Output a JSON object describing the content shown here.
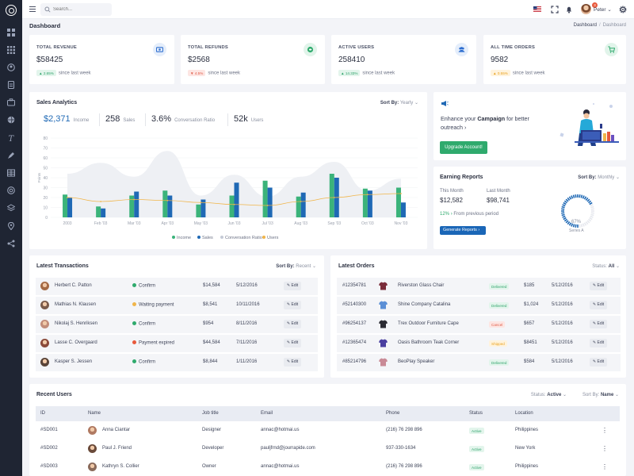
{
  "header": {
    "search_placeholder": "Search...",
    "notification_count": "3",
    "user_name": "Peter"
  },
  "page": {
    "title": "Dashboard",
    "breadcrumb": [
      "Dashboard",
      "Dashboard"
    ]
  },
  "stats": [
    {
      "title": "TOTAL REVENUE",
      "value": "$58425",
      "change": "2.65%",
      "trend": "up",
      "since": "since last week",
      "icon": "money-icon",
      "color": "#2f6fd0",
      "bg": "#e5eefb"
    },
    {
      "title": "TOTAL REFUNDS",
      "value": "$2568",
      "change": "4.5%",
      "trend": "down",
      "since": "since last week",
      "icon": "refund-icon",
      "color": "#2faa6d",
      "bg": "#e1f4ea"
    },
    {
      "title": "ACTIVE USERS",
      "value": "258410",
      "change": "14.33%",
      "trend": "up",
      "since": "since last week",
      "icon": "users-icon",
      "color": "#2f6fd0",
      "bg": "#e5eefb"
    },
    {
      "title": "ALL TIME ORDERS",
      "value": "9582",
      "change": "0.55%",
      "trend": "mid",
      "since": "since last week",
      "icon": "cart-icon",
      "color": "#2faa6d",
      "bg": "#e1f4ea"
    }
  ],
  "sales": {
    "title": "Sales Analytics",
    "sort_label": "Sort By:",
    "sort_value": "Yearly",
    "kpis": [
      {
        "value": "$2,371",
        "label": "Income"
      },
      {
        "value": "258",
        "label": "Sales"
      },
      {
        "value": "3.6%",
        "label": "Conversation Ratio"
      },
      {
        "value": "52k",
        "label": "Users"
      }
    ]
  },
  "chart_data": {
    "type": "bar",
    "categories": [
      "2003",
      "Feb '03",
      "Mar '03",
      "Apr '03",
      "May '03",
      "Jun '03",
      "Jul '03",
      "Aug '03",
      "Sep '03",
      "Oct '03",
      "Nov '03"
    ],
    "ylabel": "Points",
    "ylim": [
      0,
      80
    ],
    "yticks": [
      0,
      10,
      20,
      30,
      40,
      50,
      60,
      70,
      80
    ],
    "series": [
      {
        "name": "Income",
        "type": "bar",
        "color": "#3bb37a",
        "values": [
          23,
          11,
          22,
          27,
          13,
          22,
          37,
          21,
          44,
          29,
          30
        ]
      },
      {
        "name": "Sales",
        "type": "bar",
        "color": "#1f69b5",
        "values": [
          20,
          9,
          26,
          22,
          18,
          35,
          30,
          25,
          40,
          27,
          15
        ]
      },
      {
        "name": "Conversation Ratio",
        "type": "area",
        "color": "#eef0f4",
        "values": [
          44,
          55,
          41,
          67,
          22,
          43,
          21,
          41,
          56,
          27,
          39
        ]
      },
      {
        "name": "Users",
        "type": "line",
        "color": "#f0b54a",
        "values": [
          20,
          16,
          18,
          17,
          15,
          13,
          12,
          16,
          20,
          23,
          24
        ]
      }
    ],
    "legend": [
      "Income",
      "Sales",
      "Conversation Ratio",
      "Users"
    ],
    "legend_position": "bottom"
  },
  "campaign": {
    "text_pre": "Enhance your ",
    "text_bold": "Campaign",
    "text_post": " for better outreach",
    "button": "Upgrade Account!"
  },
  "earning": {
    "title": "Earning Reports",
    "sort_label": "Sort By:",
    "sort_value": "Monthly",
    "this_month_label": "This Month",
    "this_month_value": "$12,582",
    "last_month_label": "Last Month",
    "last_month_value": "$98,741",
    "change": "12%",
    "change_text": "From previous period",
    "button": "Generate Reports",
    "gauge_value": "67%",
    "gauge_fraction": 0.67,
    "gauge_label": "Series A"
  },
  "transactions": {
    "title": "Latest Transactions",
    "sort_label": "Sort By:",
    "sort_value": "Recent",
    "edit_label": "Edit",
    "rows": [
      {
        "name": "Herbert C. Patton",
        "status": "Confirm",
        "status_color": "#2faa6d",
        "amount": "$14,584",
        "date": "5/12/2016",
        "avatar": "#a56a45"
      },
      {
        "name": "Mathias N. Klausen",
        "status": "Waiting payment",
        "status_color": "#f0b54a",
        "amount": "$8,541",
        "date": "10/11/2016",
        "avatar": "#7a5a4a"
      },
      {
        "name": "Nikolaj S. Henriksen",
        "status": "Confirm",
        "status_color": "#2faa6d",
        "amount": "$954",
        "date": "8/11/2016",
        "avatar": "#c28d7a"
      },
      {
        "name": "Lasse C. Overgaard",
        "status": "Payment expired",
        "status_color": "#e8593c",
        "amount": "$44,584",
        "date": "7/11/2016",
        "avatar": "#8a4a3a"
      },
      {
        "name": "Kasper S. Jessen",
        "status": "Confirm",
        "status_color": "#2faa6d",
        "amount": "$8,844",
        "date": "1/11/2016",
        "avatar": "#5a4438"
      }
    ]
  },
  "orders": {
    "title": "Latest Orders",
    "status_label": "Status:",
    "status_value": "All",
    "edit_label": "Edit",
    "rows": [
      {
        "id": "#12354781",
        "product": "Riverston Glass Chair",
        "status": "Delivered",
        "kind": "delivered",
        "price": "$185",
        "date": "5/12/2016",
        "color": "#7a2c3a"
      },
      {
        "id": "#52140300",
        "product": "Shine Company Catalina",
        "status": "Delivered",
        "kind": "delivered",
        "price": "$1,024",
        "date": "5/12/2016",
        "color": "#5b8fd6"
      },
      {
        "id": "#96254137",
        "product": "Trex Outdoor Furniture Cape",
        "status": "Cancel",
        "kind": "cancel",
        "price": "$657",
        "date": "5/12/2016",
        "color": "#2b2b33"
      },
      {
        "id": "#12365474",
        "product": "Oasis Bathroom Teak Corner",
        "status": "Shipped",
        "kind": "shipped",
        "price": "$8451",
        "date": "5/12/2016",
        "color": "#4a3fa0"
      },
      {
        "id": "#85214796",
        "product": "BeoPlay Speaker",
        "status": "Delivered",
        "kind": "delivered",
        "price": "$584",
        "date": "5/12/2016",
        "color": "#c98a96"
      }
    ]
  },
  "users": {
    "title": "Recent Users",
    "status_label": "Status:",
    "status_value": "Active",
    "sort_label": "Sort By:",
    "sort_value": "Name",
    "columns": [
      "ID",
      "Name",
      "Job title",
      "Email",
      "Phone",
      "Status",
      "Location"
    ],
    "rows": [
      {
        "id": "#SD001",
        "name": "Anna Ciantar",
        "job": "Designer",
        "email": "annac@hotmai.us",
        "phone": "(216) 76 298 896",
        "status": "Active",
        "location": "Philippines",
        "avatar": "#b07a62"
      },
      {
        "id": "#SD002",
        "name": "Paul J. Friend",
        "job": "Developer",
        "email": "pauljfrnd@jourrapide.com",
        "phone": "937-330-1634",
        "status": "Active",
        "location": "New York",
        "avatar": "#6a4a3a"
      },
      {
        "id": "#SD003",
        "name": "Kathryn S. Collier",
        "job": "Owner",
        "email": "annac@hotmai.us",
        "phone": "(216) 76 298 896",
        "status": "Active",
        "location": "Philippines",
        "avatar": "#8a6a5a"
      }
    ]
  }
}
